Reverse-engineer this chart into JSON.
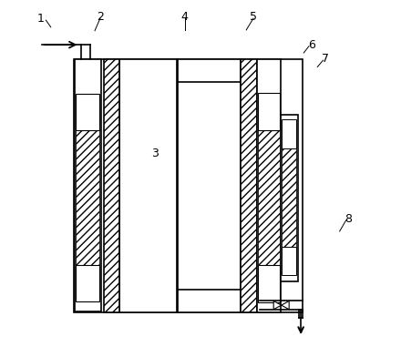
{
  "bg_color": "#ffffff",
  "line_color": "#000000",
  "fig_width": 4.4,
  "fig_height": 3.92,
  "dpi": 100,
  "lw": 1.2,
  "lw_thin": 0.7,
  "hatch_density": "///",
  "ox": 0.14,
  "oy": 0.12,
  "ow": 0.65,
  "oh": 0.72
}
